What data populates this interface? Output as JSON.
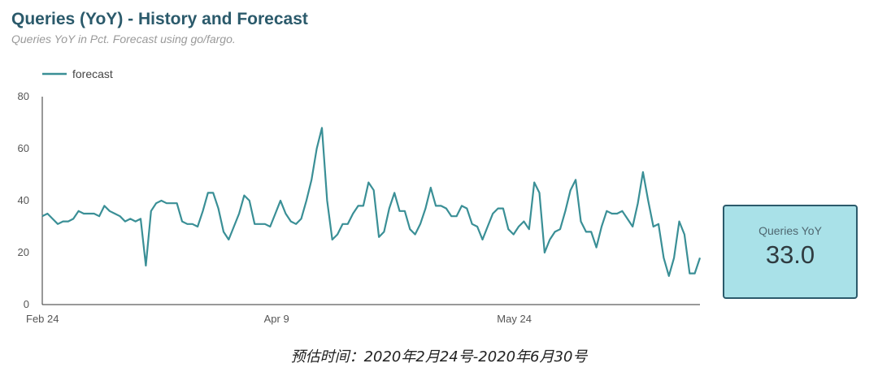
{
  "header": {
    "title": "Queries (YoY) - History and Forecast",
    "subtitle": "Queries YoY in Pct. Forecast using go/fargo."
  },
  "kpi": {
    "label": "Queries YoY",
    "value": "33.0"
  },
  "caption": "预估时间：2020年2月24号-2020年6月30号",
  "chart_data": {
    "type": "line",
    "legend": "top-left",
    "grid": false,
    "ylim": [
      0,
      80
    ],
    "xlim": [
      "2020-02-24",
      "2020-06-30"
    ],
    "yticks": [
      0,
      20,
      40,
      60,
      80
    ],
    "xticks": [
      {
        "label": "Feb 24",
        "value": "2020-02-24"
      },
      {
        "label": "Apr 9",
        "value": "2020-04-09"
      },
      {
        "label": "May 24",
        "value": "2020-05-24"
      }
    ],
    "color": "#3a8f96",
    "series": [
      {
        "name": "forecast",
        "start": "2020-02-24",
        "values": [
          34,
          35,
          33,
          31,
          32,
          32,
          33,
          36,
          35,
          35,
          35,
          34,
          38,
          36,
          35,
          34,
          32,
          33,
          32,
          33,
          15,
          36,
          39,
          40,
          39,
          39,
          39,
          32,
          31,
          31,
          30,
          36,
          43,
          43,
          37,
          28,
          25,
          30,
          35,
          42,
          40,
          31,
          31,
          31,
          30,
          35,
          40,
          35,
          32,
          31,
          33,
          40,
          48,
          60,
          68,
          40,
          25,
          27,
          31,
          31,
          35,
          38,
          38,
          47,
          44,
          26,
          28,
          37,
          43,
          36,
          36,
          29,
          27,
          31,
          37,
          45,
          38,
          38,
          37,
          34,
          34,
          38,
          37,
          31,
          30,
          25,
          30,
          35,
          37,
          37,
          29,
          27,
          30,
          32,
          29,
          47,
          43,
          20,
          25,
          28,
          29,
          36,
          44,
          48,
          32,
          28,
          28,
          22,
          30,
          36,
          35,
          35,
          36,
          33,
          30,
          39,
          51,
          40,
          30,
          31,
          18,
          11,
          18,
          32,
          27,
          12,
          12,
          18
        ]
      }
    ]
  }
}
